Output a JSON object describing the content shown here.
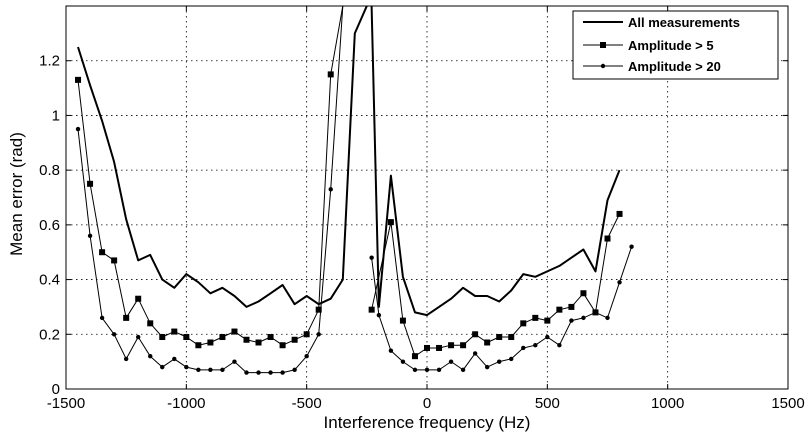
{
  "chart_data": {
    "type": "line",
    "title": "",
    "xlabel": "Interference frequency (Hz)",
    "ylabel": "Mean error (rad)",
    "xlim": [
      -1500,
      1500
    ],
    "ylim": [
      0,
      1.4
    ],
    "xticks": [
      -1500,
      -1000,
      -500,
      0,
      500,
      1000,
      1500
    ],
    "xtick_labels": [
      "-1500",
      "-1000",
      "-500",
      "0",
      "500",
      "1000",
      "1500"
    ],
    "yticks": [
      0,
      0.2,
      0.4,
      0.6,
      0.8,
      1.0,
      1.2
    ],
    "ytick_labels": [
      "0",
      "0.2",
      "0.4",
      "0.6",
      "0.8",
      "1",
      "1.2"
    ],
    "grid": true,
    "legend_position": "top-right",
    "series": [
      {
        "name": "All measurements",
        "marker": "none",
        "line_width": 2,
        "segments": [
          [
            [
              -1450,
              1.25
            ],
            [
              -1400,
              1.11
            ],
            [
              -1350,
              0.98
            ],
            [
              -1300,
              0.83
            ],
            [
              -1250,
              0.62
            ],
            [
              -1200,
              0.47
            ],
            [
              -1150,
              0.49
            ],
            [
              -1100,
              0.4
            ],
            [
              -1050,
              0.37
            ],
            [
              -1000,
              0.42
            ],
            [
              -950,
              0.39
            ],
            [
              -900,
              0.35
            ],
            [
              -850,
              0.37
            ],
            [
              -800,
              0.34
            ],
            [
              -750,
              0.3
            ],
            [
              -700,
              0.32
            ],
            [
              -650,
              0.35
            ],
            [
              -600,
              0.38
            ],
            [
              -550,
              0.31
            ],
            [
              -500,
              0.34
            ],
            [
              -450,
              0.31
            ],
            [
              -400,
              0.33
            ],
            [
              -350,
              0.4
            ],
            [
              -300,
              1.3
            ],
            [
              -250,
              1.4
            ]
          ],
          [
            [
              -230,
              1.4
            ],
            [
              -200,
              0.3
            ],
            [
              -150,
              0.78
            ],
            [
              -100,
              0.41
            ],
            [
              -50,
              0.28
            ],
            [
              0,
              0.27
            ],
            [
              50,
              0.3
            ],
            [
              100,
              0.33
            ],
            [
              150,
              0.37
            ],
            [
              200,
              0.34
            ],
            [
              250,
              0.34
            ],
            [
              300,
              0.32
            ],
            [
              350,
              0.36
            ],
            [
              400,
              0.42
            ],
            [
              450,
              0.41
            ],
            [
              500,
              0.43
            ],
            [
              550,
              0.45
            ],
            [
              600,
              0.48
            ],
            [
              650,
              0.51
            ],
            [
              700,
              0.43
            ],
            [
              750,
              0.69
            ],
            [
              800,
              0.8
            ]
          ]
        ]
      },
      {
        "name": "Amplitude > 5",
        "marker": "square",
        "line_width": 1,
        "segments": [
          [
            [
              -1450,
              1.13
            ],
            [
              -1400,
              0.75
            ],
            [
              -1350,
              0.5
            ],
            [
              -1300,
              0.47
            ],
            [
              -1250,
              0.26
            ],
            [
              -1200,
              0.33
            ],
            [
              -1150,
              0.24
            ],
            [
              -1100,
              0.19
            ],
            [
              -1050,
              0.21
            ],
            [
              -1000,
              0.19
            ],
            [
              -950,
              0.16
            ],
            [
              -900,
              0.17
            ],
            [
              -850,
              0.19
            ],
            [
              -800,
              0.21
            ],
            [
              -750,
              0.18
            ],
            [
              -700,
              0.17
            ],
            [
              -650,
              0.19
            ],
            [
              -600,
              0.16
            ],
            [
              -550,
              0.18
            ],
            [
              -500,
              0.2
            ],
            [
              -450,
              0.29
            ],
            [
              -400,
              1.15
            ],
            [
              -350,
              1.4
            ]
          ],
          [
            [
              -230,
              0.29
            ],
            [
              -150,
              0.61
            ],
            [
              -100,
              0.25
            ],
            [
              -50,
              0.12
            ],
            [
              0,
              0.15
            ],
            [
              50,
              0.15
            ],
            [
              100,
              0.16
            ],
            [
              150,
              0.16
            ],
            [
              200,
              0.2
            ],
            [
              250,
              0.17
            ],
            [
              300,
              0.19
            ],
            [
              350,
              0.19
            ],
            [
              400,
              0.24
            ],
            [
              450,
              0.26
            ],
            [
              500,
              0.25
            ],
            [
              550,
              0.29
            ],
            [
              600,
              0.3
            ],
            [
              650,
              0.35
            ],
            [
              700,
              0.28
            ],
            [
              750,
              0.55
            ],
            [
              800,
              0.64
            ]
          ]
        ]
      },
      {
        "name": "Amplitude > 20",
        "marker": "dot",
        "line_width": 1,
        "segments": [
          [
            [
              -1450,
              0.95
            ],
            [
              -1400,
              0.56
            ],
            [
              -1350,
              0.26
            ],
            [
              -1300,
              0.2
            ],
            [
              -1250,
              0.11
            ],
            [
              -1200,
              0.19
            ],
            [
              -1150,
              0.12
            ],
            [
              -1100,
              0.08
            ],
            [
              -1050,
              0.11
            ],
            [
              -1000,
              0.08
            ],
            [
              -950,
              0.07
            ],
            [
              -900,
              0.07
            ],
            [
              -850,
              0.07
            ],
            [
              -800,
              0.1
            ],
            [
              -750,
              0.06
            ],
            [
              -700,
              0.06
            ],
            [
              -650,
              0.06
            ],
            [
              -600,
              0.06
            ],
            [
              -550,
              0.07
            ],
            [
              -500,
              0.12
            ],
            [
              -450,
              0.2
            ],
            [
              -400,
              0.73
            ],
            [
              -350,
              1.4
            ]
          ],
          [
            [
              -230,
              0.48
            ],
            [
              -200,
              0.27
            ],
            [
              -150,
              0.14
            ],
            [
              -100,
              0.1
            ],
            [
              -50,
              0.07
            ],
            [
              0,
              0.07
            ],
            [
              50,
              0.07
            ],
            [
              100,
              0.1
            ],
            [
              150,
              0.07
            ],
            [
              200,
              0.13
            ],
            [
              250,
              0.08
            ],
            [
              300,
              0.1
            ],
            [
              350,
              0.11
            ],
            [
              400,
              0.15
            ],
            [
              450,
              0.16
            ],
            [
              500,
              0.19
            ],
            [
              550,
              0.16
            ],
            [
              600,
              0.25
            ],
            [
              650,
              0.26
            ],
            [
              700,
              0.28
            ],
            [
              750,
              0.26
            ],
            [
              800,
              0.39
            ],
            [
              850,
              0.52
            ]
          ]
        ]
      }
    ]
  }
}
